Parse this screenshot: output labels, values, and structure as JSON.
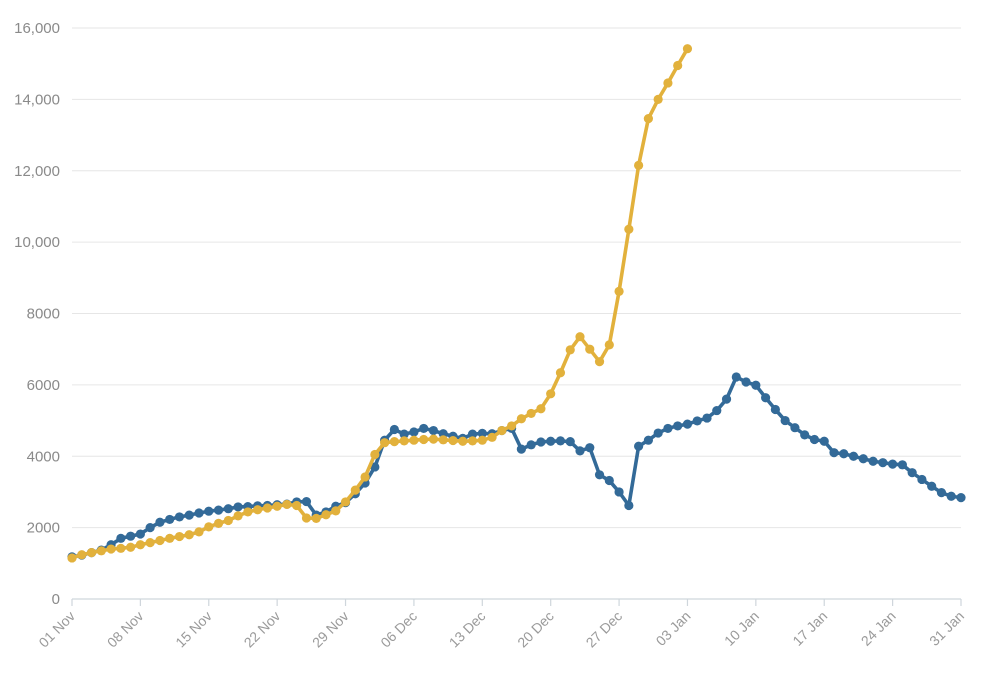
{
  "chart_data": {
    "type": "line",
    "title": "",
    "xlabel": "",
    "ylabel": "",
    "x_start": "01 Nov",
    "ylim": [
      0,
      16000
    ],
    "y_ticks": [
      0,
      2000,
      4000,
      6000,
      8000,
      10000,
      12000,
      14000,
      16000
    ],
    "y_tick_labels": [
      "0",
      "2000",
      "4000",
      "6000",
      "8000",
      "10,000",
      "12,000",
      "14,000",
      "16,000"
    ],
    "x_ticks": [
      {
        "day": 0,
        "label": "01 Nov"
      },
      {
        "day": 7,
        "label": "08 Nov"
      },
      {
        "day": 14,
        "label": "15 Nov"
      },
      {
        "day": 21,
        "label": "22 Nov"
      },
      {
        "day": 28,
        "label": "29 Nov"
      },
      {
        "day": 35,
        "label": "06 Dec"
      },
      {
        "day": 42,
        "label": "13 Dec"
      },
      {
        "day": 49,
        "label": "20 Dec"
      },
      {
        "day": 56,
        "label": "27 Dec"
      },
      {
        "day": 63,
        "label": "03 Jan"
      },
      {
        "day": 70,
        "label": "10 Jan"
      },
      {
        "day": 77,
        "label": "17 Jan"
      },
      {
        "day": 84,
        "label": "24 Jan"
      },
      {
        "day": 91,
        "label": "31 Jan"
      }
    ],
    "x_range": [
      0,
      91
    ],
    "grid": true,
    "legend": "none",
    "series": [
      {
        "color": "#336a98",
        "values": [
          1180,
          1230,
          1300,
          1370,
          1520,
          1700,
          1760,
          1820,
          2000,
          2150,
          2230,
          2300,
          2350,
          2410,
          2460,
          2490,
          2530,
          2580,
          2590,
          2610,
          2620,
          2640,
          2660,
          2720,
          2730,
          2350,
          2440,
          2600,
          2700,
          2950,
          3250,
          3700,
          4450,
          4750,
          4620,
          4680,
          4780,
          4720,
          4630,
          4560,
          4500,
          4620,
          4640,
          4630,
          4720,
          4780,
          4200,
          4320,
          4400,
          4420,
          4430,
          4410,
          4150,
          4240,
          3480,
          3320,
          3000,
          2620,
          4280,
          4450,
          4650,
          4780,
          4850,
          4900,
          4990,
          5070,
          5280,
          5600,
          6220,
          6080,
          5990,
          5640,
          5310,
          5000,
          4800,
          4600,
          4470,
          4420,
          4100,
          4070,
          4000,
          3930,
          3860,
          3820,
          3780,
          3760,
          3540,
          3350,
          3160,
          2980,
          2880,
          2840
        ]
      },
      {
        "color": "#e2b13c",
        "values": [
          1150,
          1240,
          1300,
          1350,
          1400,
          1420,
          1450,
          1520,
          1580,
          1640,
          1700,
          1750,
          1800,
          1880,
          2020,
          2120,
          2200,
          2330,
          2440,
          2500,
          2550,
          2600,
          2650,
          2620,
          2270,
          2260,
          2360,
          2470,
          2720,
          3050,
          3420,
          4050,
          4380,
          4410,
          4430,
          4450,
          4470,
          4480,
          4460,
          4440,
          4420,
          4430,
          4450,
          4530,
          4720,
          4850,
          5050,
          5200,
          5330,
          5750,
          6340,
          6980,
          7350,
          7000,
          6650,
          7120,
          8620,
          10360,
          12150,
          13460,
          14000,
          14460,
          14950,
          15420
        ]
      }
    ]
  }
}
